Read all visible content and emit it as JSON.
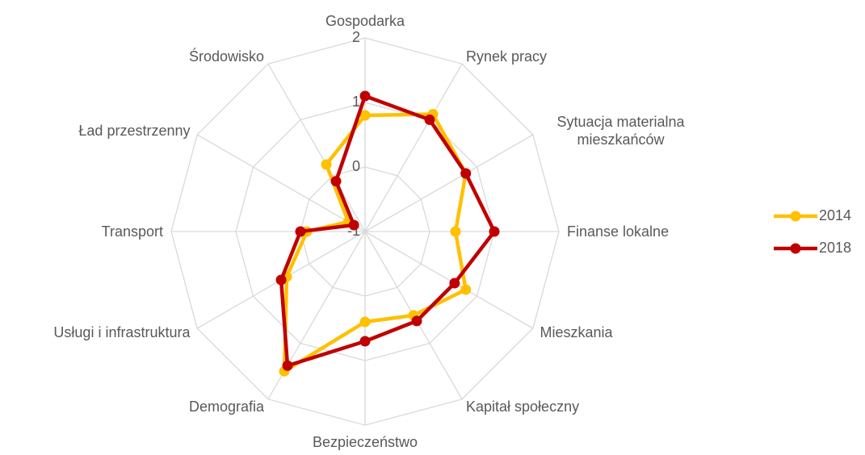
{
  "chart_data": {
    "type": "radar",
    "categories": [
      "Gospodarka",
      "Rynek pracy",
      "Sytuacja materialna mieszkańców",
      "Finanse lokalne",
      "Mieszkania",
      "Kapitał społeczny",
      "Bezpieczeństwo",
      "Demografia",
      "Usługi i infrastruktura",
      "Transport",
      "Ład przestrzenny",
      "Środowisko"
    ],
    "series": [
      {
        "name": "2014",
        "color": "#FFC000",
        "values": [
          0.8,
          1.1,
          0.8,
          0.4,
          0.8,
          0.5,
          0.4,
          1.5,
          0.4,
          -0.1,
          -0.7,
          0.2
        ]
      },
      {
        "name": "2018",
        "color": "#C00000",
        "values": [
          1.1,
          1.0,
          0.8,
          1.0,
          0.6,
          0.6,
          0.7,
          1.4,
          0.5,
          0.0,
          -0.8,
          -0.1
        ]
      }
    ],
    "ylim": [
      -1,
      2
    ],
    "yticks": [
      -1,
      0,
      1,
      2
    ],
    "grid": true,
    "legend": "right"
  }
}
